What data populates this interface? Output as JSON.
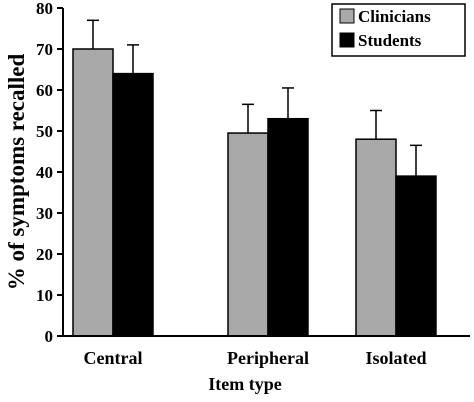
{
  "chart_data": {
    "type": "bar",
    "categories": [
      "Central",
      "Peripheral",
      "Isolated"
    ],
    "series": [
      {
        "name": "Clinicians",
        "color": "#a9a9a9",
        "values": [
          70,
          49.5,
          48
        ],
        "errors": [
          7,
          7,
          7
        ]
      },
      {
        "name": "Students",
        "color": "#000000",
        "values": [
          64,
          53,
          39
        ],
        "errors": [
          7,
          7.5,
          7.5
        ]
      }
    ],
    "xlabel": "Item type",
    "ylabel": "% of symptoms recalled",
    "ylim": [
      0,
      80
    ],
    "yticks": [
      0,
      10,
      20,
      30,
      40,
      50,
      60,
      70,
      80
    ],
    "legend_position": "top-right",
    "grid": false
  }
}
